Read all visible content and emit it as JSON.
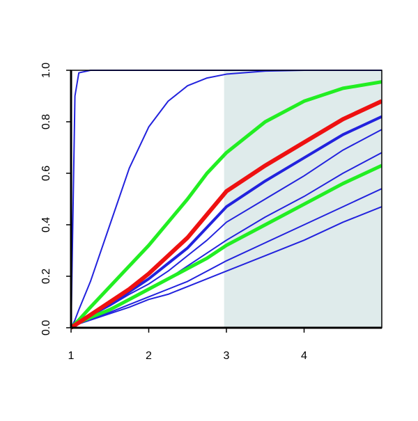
{
  "chart_data": {
    "type": "line",
    "x": [
      1,
      1.05,
      1.1,
      1.25,
      1.5,
      1.75,
      2,
      2.25,
      2.5,
      2.75,
      3,
      3.5,
      4,
      4.5,
      5
    ],
    "xlim": [
      1,
      5
    ],
    "xticks": [
      1,
      2,
      3,
      4
    ],
    "ylim": [
      0,
      1
    ],
    "yticks": [
      {
        "value": 0,
        "label": "0.0"
      },
      0.2,
      0.4,
      0.6,
      0.8,
      {
        "value": 1,
        "label": "1.0"
      }
    ],
    "shade_x": [
      2.97,
      5
    ],
    "shade_color": "#dfebeb",
    "series": [
      {
        "color": "#2222dd",
        "values": [
          0,
          0.9,
          0.99,
          1,
          1,
          1,
          1,
          1,
          1,
          1,
          1,
          1,
          1,
          1,
          1
        ]
      },
      {
        "color": "#2222dd",
        "values": [
          0,
          0.03,
          0.07,
          0.18,
          0.4,
          0.62,
          0.78,
          0.88,
          0.94,
          0.97,
          0.985,
          0.997,
          1,
          1,
          1
        ]
      },
      {
        "color": "#2222dd",
        "values": [
          0,
          0.01,
          0.015,
          0.03,
          0.055,
          0.08,
          0.11,
          0.13,
          0.16,
          0.19,
          0.22,
          0.28,
          0.34,
          0.41,
          0.47
        ]
      },
      {
        "color": "#2222dd",
        "values": [
          0,
          0.01,
          0.015,
          0.035,
          0.06,
          0.09,
          0.12,
          0.15,
          0.18,
          0.22,
          0.26,
          0.33,
          0.4,
          0.47,
          0.54
        ]
      },
      {
        "color": "#2222dd",
        "values": [
          0,
          0.01,
          0.02,
          0.04,
          0.075,
          0.11,
          0.15,
          0.19,
          0.24,
          0.29,
          0.34,
          0.43,
          0.51,
          0.6,
          0.68
        ]
      },
      {
        "color": "#2222dd",
        "values": [
          0,
          0.01,
          0.02,
          0.045,
          0.085,
          0.13,
          0.17,
          0.22,
          0.28,
          0.34,
          0.41,
          0.5,
          0.59,
          0.69,
          0.77
        ]
      },
      {
        "color": "#2222dd",
        "values": [
          0,
          0.01,
          0.02,
          0.05,
          0.09,
          0.14,
          0.19,
          0.25,
          0.31,
          0.39,
          0.47,
          0.57,
          0.66,
          0.75,
          0.82
        ]
      },
      {
        "color": "#22ee22",
        "values": [
          0,
          0.01,
          0.02,
          0.04,
          0.07,
          0.11,
          0.15,
          0.19,
          0.23,
          0.27,
          0.32,
          0.4,
          0.48,
          0.56,
          0.63
        ]
      },
      {
        "color": "#22ee22",
        "values": [
          0,
          0.015,
          0.03,
          0.08,
          0.16,
          0.24,
          0.32,
          0.41,
          0.5,
          0.6,
          0.68,
          0.8,
          0.88,
          0.93,
          0.955
        ]
      },
      {
        "color": "#ee1111",
        "values": [
          0,
          0.01,
          0.02,
          0.05,
          0.1,
          0.15,
          0.21,
          0.28,
          0.35,
          0.44,
          0.53,
          0.63,
          0.72,
          0.81,
          0.88
        ]
      }
    ]
  }
}
